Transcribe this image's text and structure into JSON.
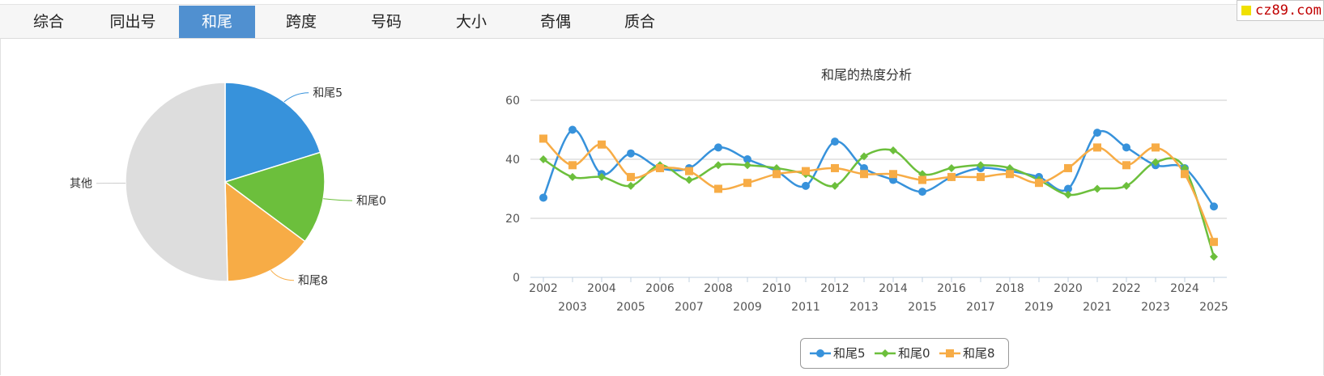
{
  "tabs": [
    {
      "label": "综合",
      "active": false
    },
    {
      "label": "同出号",
      "active": false
    },
    {
      "label": "和尾",
      "active": true
    },
    {
      "label": "跨度",
      "active": false
    },
    {
      "label": "号码",
      "active": false
    },
    {
      "label": "大小",
      "active": false
    },
    {
      "label": "奇偶",
      "active": false
    },
    {
      "label": "质合",
      "active": false
    }
  ],
  "watermark": "cz89.com",
  "colors": {
    "series1": "#3792db",
    "series2": "#6cbf3c",
    "series3": "#f7ac46",
    "other": "#dddddd"
  },
  "chart_data": [
    {
      "type": "pie",
      "title": "",
      "slices": [
        {
          "label": "和尾5",
          "value": 20.2,
          "color": "#3792db"
        },
        {
          "label": "和尾0",
          "value": 15.0,
          "color": "#6cbf3c"
        },
        {
          "label": "和尾8",
          "value": 14.4,
          "color": "#f7ac46"
        },
        {
          "label": "其他",
          "value": 50.4,
          "color": "#dddddd"
        }
      ]
    },
    {
      "type": "line",
      "title": "和尾的热度分析",
      "x": [
        "2002",
        "2003",
        "2004",
        "2005",
        "2006",
        "2007",
        "2008",
        "2009",
        "2010",
        "2011",
        "2012",
        "2013",
        "2014",
        "2015",
        "2016",
        "2017",
        "2018",
        "2019",
        "2020",
        "2021",
        "2022",
        "2023",
        "2024",
        "2025"
      ],
      "ylim": [
        0,
        60
      ],
      "yticks": [
        0,
        20,
        40,
        60
      ],
      "grid": true,
      "legend": "bottom-center",
      "series": [
        {
          "name": "和尾5",
          "color": "#3792db",
          "marker": "circle",
          "values": [
            27,
            50,
            35,
            42,
            37,
            37,
            44,
            40,
            36,
            31,
            46,
            37,
            33,
            29,
            34,
            37,
            36,
            34,
            30,
            49,
            44,
            38,
            37,
            24
          ]
        },
        {
          "name": "和尾0",
          "color": "#6cbf3c",
          "marker": "diamond",
          "values": [
            40,
            34,
            34,
            31,
            38,
            33,
            38,
            38,
            37,
            35,
            31,
            41,
            43,
            35,
            37,
            38,
            37,
            33,
            28,
            30,
            31,
            39,
            37,
            7
          ]
        },
        {
          "name": "和尾8",
          "color": "#f7ac46",
          "marker": "square",
          "values": [
            47,
            38,
            45,
            34,
            37,
            36,
            30,
            32,
            35,
            36,
            37,
            35,
            35,
            33,
            34,
            34,
            35,
            32,
            37,
            44,
            38,
            44,
            35,
            12
          ]
        }
      ]
    }
  ]
}
